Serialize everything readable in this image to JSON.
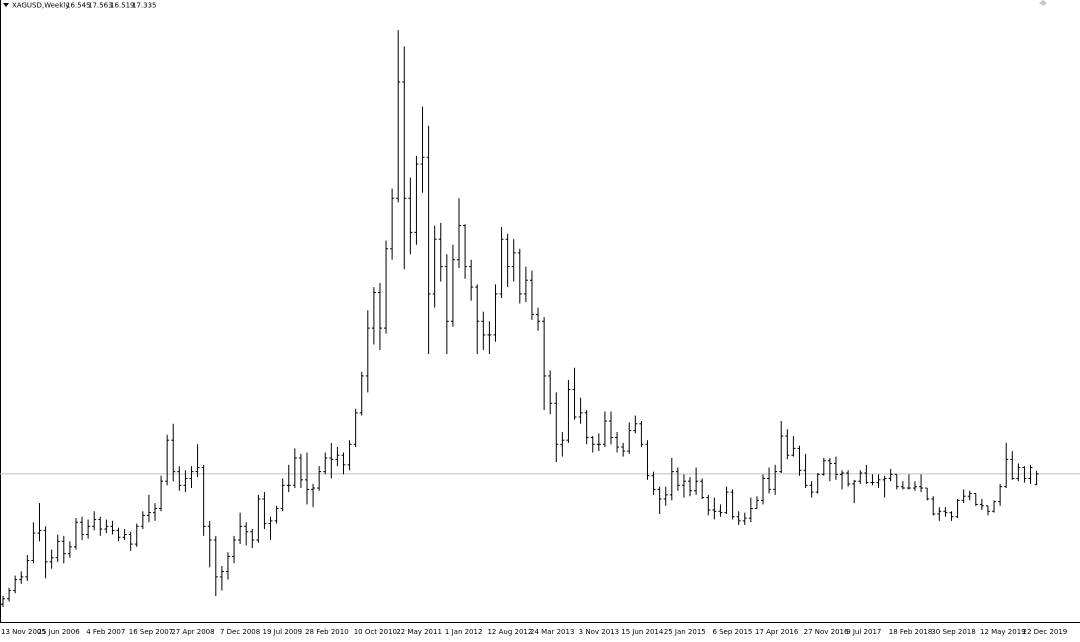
{
  "chart_data": {
    "type": "ohlc",
    "title": "XAGUSD,Weekly",
    "color": "#000000",
    "price_line_color": "#c0c0c0",
    "ylim": [
      6.5,
      52
    ],
    "categories": [
      "13 Nov 2005",
      null,
      null,
      null,
      null,
      null,
      null,
      "25 Jun 2006",
      null,
      null,
      null,
      null,
      null,
      null,
      null,
      "4 Feb 2007",
      null,
      null,
      null,
      null,
      null,
      null,
      "16 Sep 2007",
      null,
      null,
      null,
      null,
      null,
      null,
      "27 Apr 2008",
      null,
      null,
      null,
      null,
      null,
      null,
      null,
      "7 Dec 2008",
      null,
      null,
      null,
      null,
      null,
      null,
      "19 Jul 2009",
      null,
      null,
      null,
      null,
      null,
      null,
      "28 Feb 2010",
      null,
      null,
      null,
      null,
      null,
      null,
      null,
      "10 Oct 2010",
      null,
      null,
      null,
      null,
      null,
      null,
      "22 May 2011",
      null,
      null,
      null,
      null,
      null,
      null,
      null,
      "1 Jan 2012",
      null,
      null,
      null,
      null,
      null,
      null,
      "12 Aug 2012",
      null,
      null,
      null,
      null,
      null,
      null,
      "24 Mar 2013",
      null,
      null,
      null,
      null,
      null,
      null,
      null,
      "3 Nov 2013",
      null,
      null,
      null,
      null,
      null,
      null,
      "15 Jun 2014",
      null,
      null,
      null,
      null,
      null,
      null,
      "25 Jan 2015",
      null,
      null,
      null,
      null,
      null,
      null,
      null,
      "6 Sep 2015",
      null,
      null,
      null,
      null,
      null,
      null,
      "17 Apr 2016",
      null,
      null,
      null,
      null,
      null,
      null,
      null,
      "27 Nov 2016",
      null,
      null,
      null,
      null,
      null,
      null,
      "9 Jul 2017",
      null,
      null,
      null,
      null,
      null,
      null,
      "18 Feb 2018",
      null,
      null,
      null,
      null,
      null,
      null,
      "30 Sep 2018",
      null,
      null,
      null,
      null,
      null,
      null,
      null,
      "12 May 2019",
      null,
      null,
      null,
      null,
      null,
      null,
      "22 Dec 2019",
      null
    ],
    "open": [
      7.8,
      8.2,
      8.8,
      9.6,
      9.8,
      11.0,
      13.0,
      13.2,
      10.9,
      11.2,
      12.4,
      11.5,
      12.0,
      13.8,
      12.9,
      13.5,
      14.0,
      13.3,
      13.5,
      13.2,
      12.7,
      12.9,
      12.2,
      13.5,
      14.3,
      14.5,
      14.8,
      16.8,
      19.8,
      17.5,
      16.5,
      17.0,
      17.5,
      17.8,
      13.5,
      12.5,
      9.8,
      10.2,
      11.3,
      12.5,
      13.5,
      13.1,
      12.5,
      15.5,
      13.7,
      13.9,
      14.8,
      16.5,
      16.5,
      18.5,
      16.9,
      16.2,
      16.3,
      17.5,
      18.5,
      18.4,
      18.7,
      18.0,
      19.5,
      21.8,
      24.5,
      28.0,
      30.6,
      28.0,
      33.8,
      37.5,
      46.0,
      37.5,
      35.0,
      40.0,
      40.5,
      30.5,
      34.5,
      32.5,
      28.5,
      33.0,
      35.5,
      32.5,
      31.0,
      28.5,
      27.5,
      27.5,
      30.5,
      34.5,
      32.5,
      33.5,
      30.5,
      31.5,
      29.0,
      28.5,
      24.5,
      22.5,
      19.5,
      19.8,
      23.5,
      21.5,
      21.8,
      20.0,
      19.5,
      19.5,
      21.2,
      20.0,
      19.3,
      19.0,
      20.5,
      21.0,
      19.5,
      17.2,
      16.2,
      15.5,
      15.8,
      17.5,
      16.5,
      16.8,
      16.1,
      16.8,
      15.6,
      14.7,
      14.6,
      14.5,
      16.0,
      14.2,
      13.9,
      14.1,
      14.8,
      15.4,
      17.0,
      16.2,
      17.5,
      20.1,
      18.7,
      19.2,
      17.6,
      16.5,
      16.0,
      17.3,
      18.3,
      18.1,
      17.3,
      17.4,
      16.6,
      16.8,
      17.4,
      16.7,
      16.7,
      16.9,
      17.0,
      17.3,
      16.4,
      16.3,
      16.3,
      16.4,
      16.3,
      15.5,
      14.4,
      14.6,
      14.5,
      14.2,
      15.4,
      15.7,
      15.9,
      15.1,
      15.0,
      14.6,
      15.3,
      16.4,
      18.4,
      17.0,
      17.8,
      17.0,
      16.545
    ],
    "high": [
      8.4,
      9.0,
      9.9,
      10.2,
      11.4,
      13.8,
      15.2,
      13.5,
      11.8,
      12.9,
      12.8,
      12.4,
      14.1,
      14.2,
      14.0,
      14.6,
      14.2,
      14.0,
      13.9,
      13.4,
      13.3,
      13.1,
      13.7,
      14.6,
      15.8,
      15.2,
      17.2,
      20.2,
      21.0,
      17.9,
      17.6,
      17.9,
      19.5,
      18.0,
      13.9,
      12.8,
      10.6,
      11.6,
      12.8,
      14.5,
      13.8,
      13.3,
      15.8,
      16.0,
      14.2,
      15.0,
      17.0,
      18.0,
      19.2,
      18.8,
      18.9,
      16.6,
      17.9,
      18.9,
      19.6,
      19.3,
      18.9,
      19.8,
      22.1,
      24.8,
      29.3,
      31.0,
      31.3,
      34.4,
      38.2,
      49.8,
      48.6,
      39.0,
      40.6,
      44.2,
      42.8,
      35.5,
      35.7,
      33.4,
      34.1,
      37.5,
      35.6,
      33.0,
      31.2,
      29.2,
      28.5,
      31.2,
      35.4,
      34.9,
      34.5,
      33.8,
      32.5,
      32.2,
      29.5,
      28.8,
      24.9,
      23.3,
      20.4,
      24.2,
      25.1,
      22.9,
      22.0,
      20.1,
      20.3,
      21.9,
      21.9,
      20.4,
      19.6,
      21.1,
      21.6,
      21.2,
      19.8,
      17.5,
      16.4,
      16.4,
      18.5,
      17.8,
      17.3,
      17.1,
      17.8,
      17.0,
      15.8,
      15.6,
      15.1,
      16.4,
      16.2,
      14.6,
      14.5,
      15.6,
      15.7,
      17.3,
      17.8,
      18.0,
      21.2,
      20.6,
      20.1,
      19.4,
      18.8,
      16.8,
      17.4,
      18.5,
      18.5,
      18.6,
      17.6,
      17.6,
      16.9,
      17.6,
      18.0,
      17.3,
      17.3,
      17.2,
      17.7,
      17.3,
      16.8,
      17.3,
      16.8,
      17.3,
      16.3,
      15.7,
      14.9,
      14.9,
      14.6,
      15.5,
      16.2,
      16.1,
      15.9,
      15.5,
      15.0,
      15.4,
      16.6,
      19.6,
      19.0,
      18.1,
      17.9,
      18.0,
      17.563
    ],
    "low": [
      7.6,
      8.0,
      8.6,
      9.3,
      9.5,
      10.8,
      12.4,
      9.7,
      10.4,
      10.9,
      10.8,
      11.2,
      11.8,
      12.5,
      12.6,
      13.2,
      12.8,
      13.0,
      12.9,
      12.4,
      12.5,
      11.7,
      12.0,
      13.3,
      13.8,
      13.9,
      14.6,
      16.5,
      16.8,
      16.1,
      16.0,
      16.3,
      17.1,
      12.8,
      10.5,
      8.4,
      8.8,
      9.6,
      10.8,
      12.2,
      12.1,
      11.9,
      12.3,
      13.3,
      12.5,
      13.7,
      14.6,
      16.0,
      16.3,
      16.3,
      15.1,
      14.9,
      16.1,
      17.3,
      17.0,
      17.9,
      17.3,
      17.6,
      19.3,
      21.6,
      23.3,
      26.8,
      26.4,
      27.6,
      33.0,
      37.2,
      32.3,
      33.4,
      34.1,
      37.9,
      26.1,
      29.5,
      31.4,
      26.1,
      28.1,
      32.4,
      31.6,
      30.0,
      26.1,
      26.4,
      26.1,
      27.0,
      30.2,
      31.0,
      31.4,
      29.8,
      29.9,
      28.6,
      27.8,
      22.0,
      21.7,
      18.2,
      18.6,
      19.6,
      21.3,
      21.0,
      19.5,
      18.9,
      19.0,
      19.3,
      19.5,
      18.9,
      18.6,
      18.8,
      20.3,
      19.3,
      16.9,
      15.8,
      14.4,
      15.0,
      15.4,
      16.1,
      15.6,
      15.7,
      15.8,
      15.5,
      14.3,
      14.0,
      14.2,
      14.4,
      14.0,
      13.6,
      13.6,
      13.8,
      14.8,
      15.1,
      15.9,
      15.8,
      17.4,
      18.4,
      18.6,
      17.2,
      16.3,
      15.6,
      15.9,
      17.2,
      16.8,
      16.9,
      16.2,
      16.4,
      15.2,
      16.6,
      16.6,
      16.5,
      16.3,
      15.6,
      16.8,
      16.2,
      16.2,
      16.2,
      16.1,
      16.0,
      15.4,
      14.3,
      13.9,
      14.2,
      13.9,
      14.1,
      15.2,
      15.4,
      15.0,
      14.7,
      14.3,
      14.5,
      15.0,
      16.3,
      16.9,
      16.8,
      16.7,
      16.6,
      16.519
    ],
    "close": [
      8.2,
      8.8,
      9.6,
      9.8,
      11.0,
      13.0,
      13.2,
      10.9,
      11.2,
      12.4,
      11.5,
      12.0,
      13.8,
      12.9,
      13.5,
      14.0,
      13.3,
      13.5,
      13.2,
      12.7,
      12.9,
      12.2,
      13.5,
      14.3,
      14.5,
      14.8,
      16.8,
      19.8,
      17.5,
      16.5,
      17.0,
      17.5,
      17.8,
      13.5,
      12.5,
      9.8,
      10.2,
      11.3,
      12.5,
      13.5,
      13.1,
      12.5,
      15.5,
      13.7,
      13.9,
      14.8,
      16.5,
      16.5,
      18.5,
      16.9,
      16.2,
      16.3,
      17.5,
      18.5,
      18.4,
      18.7,
      18.0,
      19.5,
      21.8,
      24.5,
      28.0,
      30.6,
      28.0,
      33.8,
      37.5,
      46.0,
      37.5,
      35.0,
      40.0,
      40.5,
      30.5,
      34.5,
      32.5,
      28.5,
      33.0,
      35.5,
      32.5,
      31.0,
      28.5,
      27.5,
      27.5,
      30.5,
      34.5,
      32.5,
      33.5,
      30.5,
      31.5,
      29.0,
      28.5,
      24.5,
      22.5,
      19.5,
      19.8,
      23.5,
      21.5,
      21.8,
      20.0,
      19.5,
      19.5,
      21.2,
      20.0,
      19.3,
      19.0,
      20.5,
      21.0,
      19.5,
      17.2,
      16.2,
      15.5,
      15.8,
      17.5,
      16.5,
      16.8,
      16.1,
      16.8,
      15.6,
      14.7,
      14.6,
      14.5,
      16.0,
      14.2,
      13.9,
      14.1,
      14.8,
      15.4,
      17.0,
      16.2,
      17.5,
      20.1,
      18.7,
      19.2,
      17.6,
      16.5,
      16.0,
      17.3,
      18.3,
      18.1,
      17.3,
      17.4,
      16.6,
      16.8,
      17.4,
      16.7,
      16.7,
      16.9,
      17.0,
      17.3,
      16.4,
      16.3,
      16.3,
      16.4,
      16.3,
      15.5,
      14.4,
      14.6,
      14.5,
      14.2,
      15.4,
      15.7,
      15.9,
      15.1,
      15.0,
      14.6,
      15.3,
      16.4,
      18.4,
      17.0,
      17.8,
      17.0,
      17.8,
      17.335
    ]
  }
}
